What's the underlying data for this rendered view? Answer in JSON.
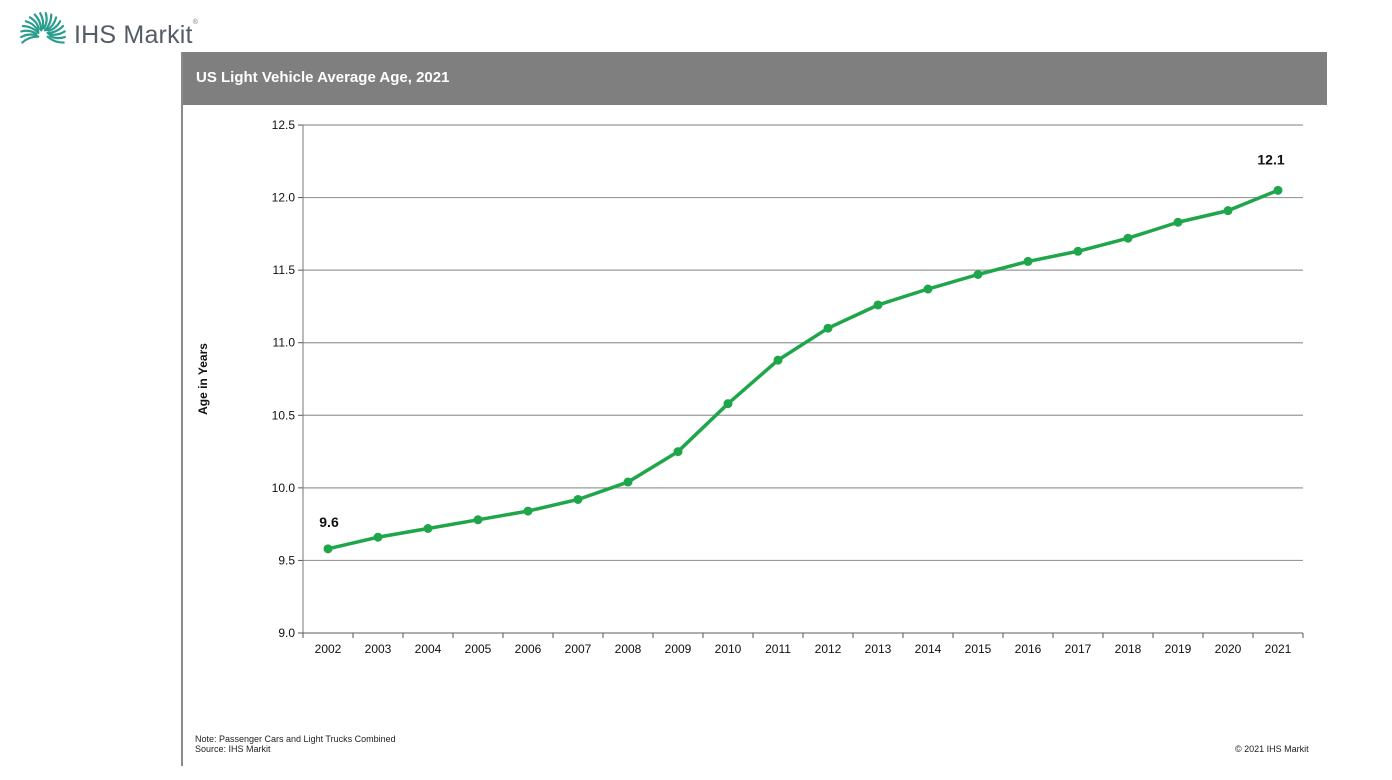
{
  "logo": {
    "text": "IHS Markit",
    "tm": "®",
    "icon": "starburst-logo-icon",
    "color": "#2a9d8f"
  },
  "chart_data": {
    "type": "line",
    "title": "US Light Vehicle Average Age, 2021",
    "ylabel": "Age in Years",
    "xlabel": "",
    "x": [
      "2002",
      "2003",
      "2004",
      "2005",
      "2006",
      "2007",
      "2008",
      "2009",
      "2010",
      "2011",
      "2012",
      "2013",
      "2014",
      "2015",
      "2016",
      "2017",
      "2018",
      "2019",
      "2020",
      "2021"
    ],
    "series": [
      {
        "values": [
          9.58,
          9.66,
          9.72,
          9.78,
          9.84,
          9.92,
          10.04,
          10.25,
          10.58,
          10.88,
          11.1,
          11.26,
          11.37,
          11.47,
          11.56,
          11.63,
          11.72,
          11.83,
          11.91,
          12.05
        ],
        "color": "#1fa64a"
      }
    ],
    "ylim": [
      9.0,
      12.5
    ],
    "yticks": [
      "9.0",
      "9.5",
      "10.0",
      "10.5",
      "11.0",
      "11.5",
      "12.0",
      "12.5"
    ],
    "annotations": [
      {
        "index": 0,
        "text": "9.6"
      },
      {
        "index": 19,
        "text": "12.1"
      }
    ],
    "grid": true,
    "legend": "none"
  },
  "footer": {
    "note_line1": "Note: Passenger Cars and Light Trucks Combined",
    "note_line2": "Source: IHS Markit",
    "copyright": "© 2021 IHS Markit"
  },
  "colors": {
    "title_bar": "#7f7f7f",
    "line": "#1fa64a",
    "grid": "#9a9a9a"
  }
}
